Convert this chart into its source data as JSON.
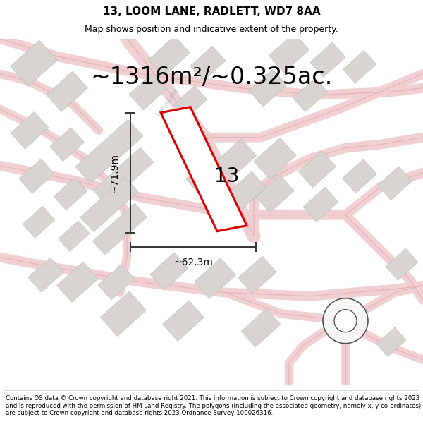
{
  "title": "13, LOOM LANE, RADLETT, WD7 8AA",
  "subtitle": "Map shows position and indicative extent of the property.",
  "area_text": "~1316m²/~0.325ac.",
  "label_number": "13",
  "width_label": "~62.3m",
  "height_label": "~71.9m",
  "footer": "Contains OS data © Crown copyright and database right 2021. This information is subject to Crown copyright and database rights 2023 and is reproduced with the permission of HM Land Registry. The polygons (including the associated geometry, namely x, y co-ordinates) are subject to Crown copyright and database rights 2023 Ordnance Survey 100026316.",
  "bg_color": "#ffffff",
  "map_bg": "#f7f6f4",
  "road_color": "#e8b4b8",
  "road_fill": "#f0d0d2",
  "plot_color": "#dd0000",
  "building_color": "#d8d4d0",
  "building_edge": "#c8c4c0",
  "title_fontsize": 11,
  "subtitle_fontsize": 9,
  "area_fontsize": 24,
  "label_fontsize": 20,
  "measure_fontsize": 10,
  "footer_fontsize": 6.2,
  "arrow_color": "#333333",
  "loom_lane_color": "#bbbbbb",
  "roundabout_color": "#555555"
}
